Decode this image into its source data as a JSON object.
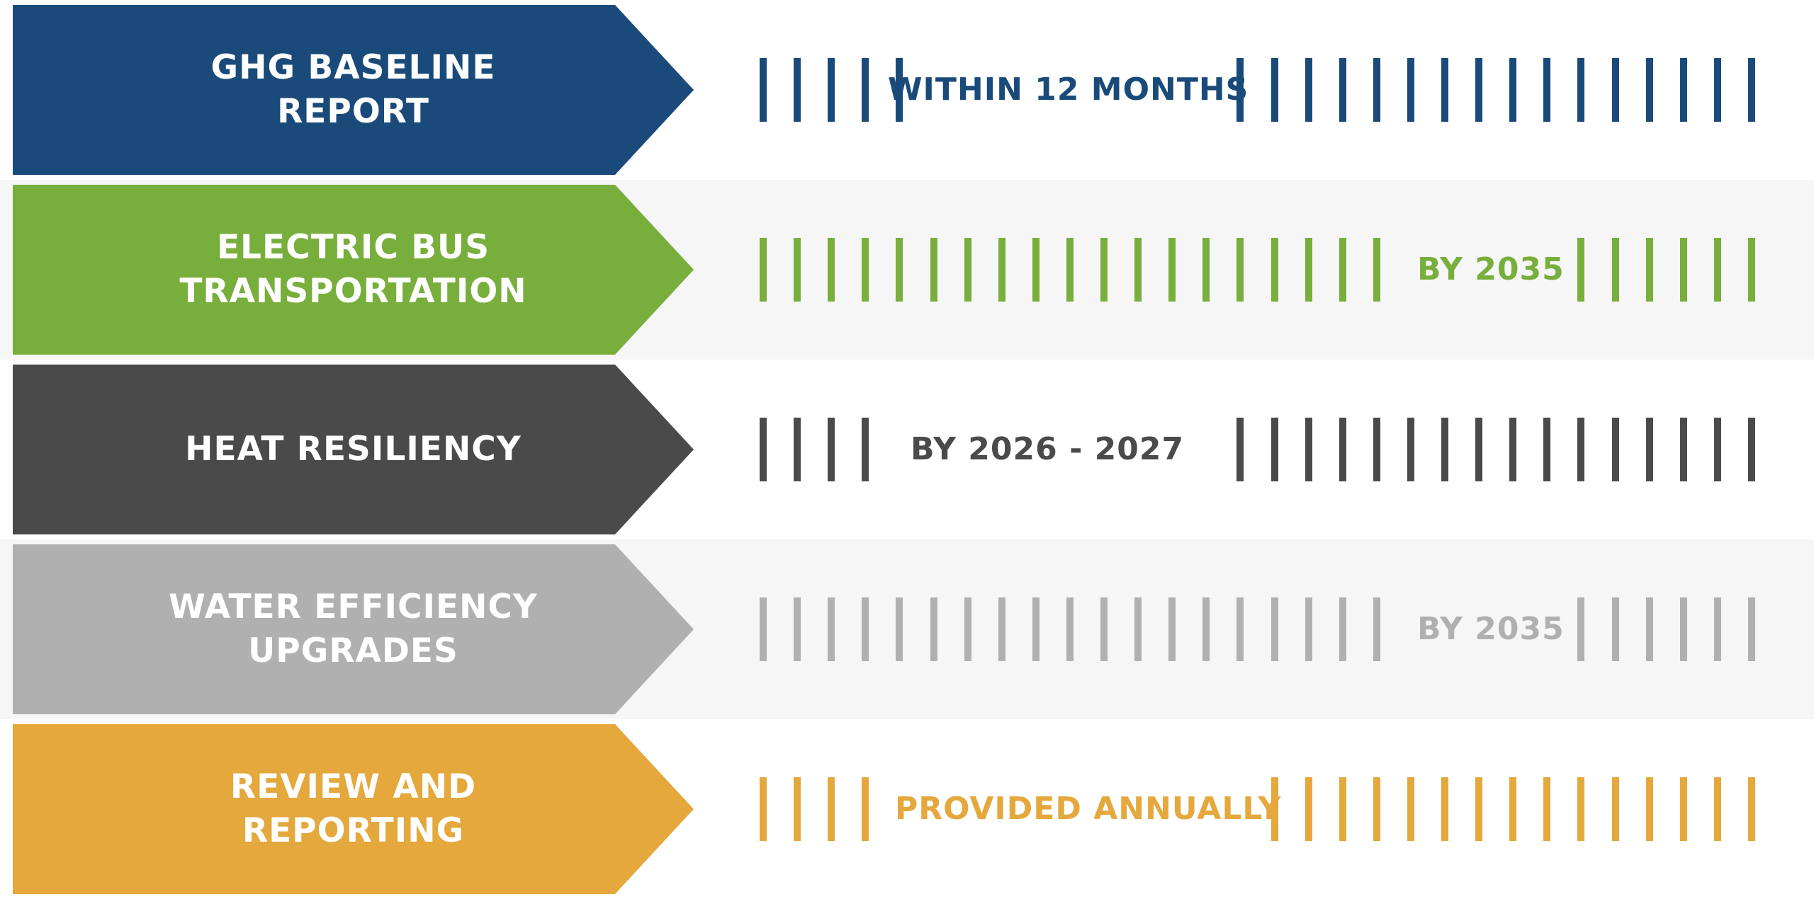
{
  "rows": [
    {
      "label_line1": "GHG BASELINE",
      "label_line2": "REPORT",
      "timing": "WITHIN 12 MONTHS",
      "color": "#1a4a7a",
      "row_bg": "#ffffff"
    },
    {
      "label_line1": "ELECTRIC BUS",
      "label_line2": "TRANSPORTATION",
      "timing": "BY 2035",
      "color": "#78ae3c",
      "row_bg": "#f6f6f6"
    },
    {
      "label_line1": "HEAT RESILIENCY",
      "label_line2": "",
      "timing": "BY 2026 - 2027",
      "color": "#4a4a4a",
      "row_bg": "#ffffff"
    },
    {
      "label_line1": "WATER EFFICIENCY",
      "label_line2": "UPGRADES",
      "timing": "BY 2035",
      "color": "#b0b0b0",
      "row_bg": "#f6f6f6"
    },
    {
      "label_line1": "REVIEW AND",
      "label_line2": "REPORTING",
      "timing": "PROVIDED ANNUALLY",
      "color": "#e4a83c",
      "row_bg": "#ffffff"
    }
  ]
}
